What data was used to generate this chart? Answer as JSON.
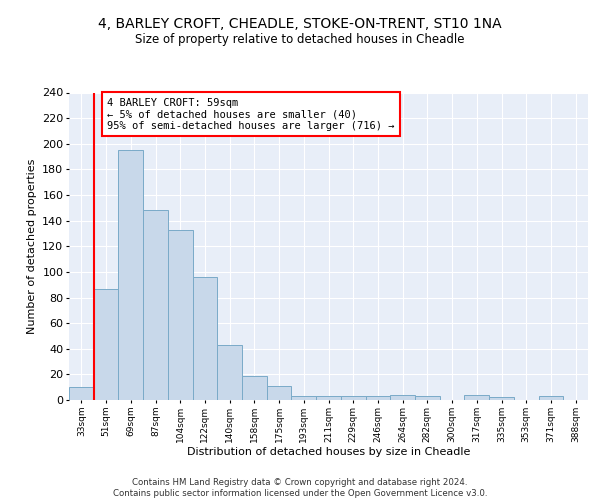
{
  "title1": "4, BARLEY CROFT, CHEADLE, STOKE-ON-TRENT, ST10 1NA",
  "title2": "Size of property relative to detached houses in Cheadle",
  "xlabel": "Distribution of detached houses by size in Cheadle",
  "ylabel": "Number of detached properties",
  "bar_labels": [
    "33sqm",
    "51sqm",
    "69sqm",
    "87sqm",
    "104sqm",
    "122sqm",
    "140sqm",
    "158sqm",
    "175sqm",
    "193sqm",
    "211sqm",
    "229sqm",
    "246sqm",
    "264sqm",
    "282sqm",
    "300sqm",
    "317sqm",
    "335sqm",
    "353sqm",
    "371sqm",
    "388sqm"
  ],
  "bar_values": [
    10,
    87,
    195,
    148,
    133,
    96,
    43,
    19,
    11,
    3,
    3,
    3,
    3,
    4,
    3,
    0,
    4,
    2,
    0,
    3,
    0
  ],
  "bar_color": "#c8d8ea",
  "bar_edge_color": "#7aaac8",
  "background_color": "#e8eef8",
  "red_line_x": 0.5,
  "annotation_text": "4 BARLEY CROFT: 59sqm\n← 5% of detached houses are smaller (40)\n95% of semi-detached houses are larger (716) →",
  "annotation_box_color": "white",
  "annotation_box_edge": "red",
  "footer": "Contains HM Land Registry data © Crown copyright and database right 2024.\nContains public sector information licensed under the Open Government Licence v3.0.",
  "ylim": [
    0,
    240
  ],
  "yticks": [
    0,
    20,
    40,
    60,
    80,
    100,
    120,
    140,
    160,
    180,
    200,
    220,
    240
  ]
}
